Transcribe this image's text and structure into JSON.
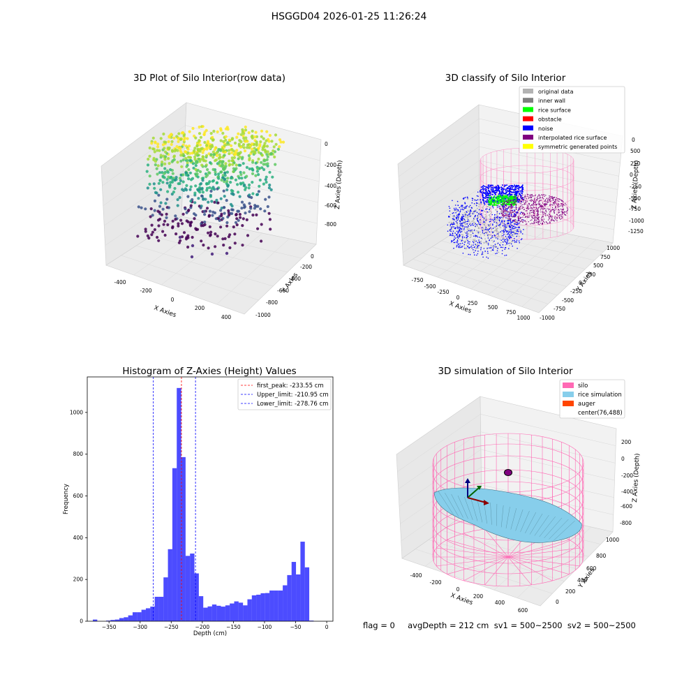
{
  "suptitle": "HSGGD04 2026-01-25 11:26:24",
  "footer": "flag = 0     avgDepth = 212 cm  sv1 = 500~2500  sv2 = 500~2500",
  "panels": {
    "raw": {
      "title": "3D Plot of Silo Interior(row data)",
      "xlabel": "X Axies",
      "ylabel": "Y Axies",
      "zlabel": "Z Axies (Depth)",
      "xticks": [
        "-400",
        "-200",
        "0",
        "200",
        "400"
      ],
      "yticks": [
        "0",
        "-200",
        "-400",
        "-600",
        "-800",
        "-1000"
      ],
      "zticks": [
        "0",
        "-200",
        "-400",
        "-600",
        "-800"
      ]
    },
    "classify": {
      "title": "3D classify of Silo Interior",
      "xlabel": "X Axies",
      "ylabel": "Y Axies",
      "zlabel": "Z Axies (Depth)",
      "xticks": [
        "-750",
        "-500",
        "-250",
        "0",
        "250",
        "500",
        "750",
        "1000"
      ],
      "yticks": [
        "1000",
        "750",
        "500",
        "250",
        "0",
        "-250",
        "-500",
        "-750",
        "-1000"
      ],
      "zticks": [
        "500",
        "250",
        "0",
        "-250",
        "-500",
        "-750",
        "-1000",
        "-1250"
      ],
      "legend": [
        {
          "label": "original data",
          "color": "#b3b3b3"
        },
        {
          "label": "inner wall",
          "color": "#808080"
        },
        {
          "label": "rice surface",
          "color": "#00ff00"
        },
        {
          "label": "obstacle",
          "color": "#ff0000"
        },
        {
          "label": "noise",
          "color": "#0000ff"
        },
        {
          "label": "interpolated rice surface",
          "color": "#800080"
        },
        {
          "label": "symmetric generated points",
          "color": "#ffff00"
        }
      ],
      "partial_tick": "0"
    },
    "simulation": {
      "title": "3D simulation of Silo Interior",
      "xlabel": "X Axies",
      "ylabel": "Y Axies",
      "zlabel": "Z Axies (Depth)",
      "xticks": [
        "-400",
        "-200",
        "0",
        "200",
        "400",
        "600"
      ],
      "yticks": [
        "1000",
        "800",
        "600",
        "400",
        "200",
        "0"
      ],
      "zticks": [
        "200",
        "0",
        "-200",
        "-400",
        "-600",
        "-800"
      ],
      "legend": [
        {
          "label": "silo",
          "color": "#ff69b4"
        },
        {
          "label": "rice simulation",
          "color": "#87ceeb"
        },
        {
          "label": "auger",
          "color": "#ff4500"
        },
        {
          "label": "center(76,488)",
          "color": "none"
        }
      ]
    }
  },
  "chart_data": [
    {
      "type": "scatter3d",
      "title": "3D Plot of Silo Interior(row data)",
      "xlabel": "X Axies",
      "ylabel": "Y Axies",
      "zlabel": "Z Axies (Depth)",
      "xlim": [
        -500,
        450
      ],
      "ylim": [
        -1000,
        50
      ],
      "zlim": [
        -950,
        50
      ],
      "colormap": "viridis"
    },
    {
      "type": "scatter3d",
      "title": "3D classify of Silo Interior",
      "xlabel": "X Axies",
      "ylabel": "Y Axies",
      "zlabel": "Z Axies (Depth)",
      "xlim": [
        -850,
        1050
      ],
      "ylim": [
        -1050,
        1050
      ],
      "zlim": [
        -1300,
        550
      ],
      "series": [
        {
          "name": "original data",
          "color": "#b3b3b3"
        },
        {
          "name": "inner wall",
          "color": "#808080"
        },
        {
          "name": "rice surface",
          "color": "#00ff00"
        },
        {
          "name": "obstacle",
          "color": "#ff0000"
        },
        {
          "name": "noise",
          "color": "#0000ff"
        },
        {
          "name": "interpolated rice surface",
          "color": "#800080"
        },
        {
          "name": "symmetric generated points",
          "color": "#ffff00"
        }
      ],
      "legend_position": "upper right"
    },
    {
      "type": "bar",
      "title": "Histogram of Z-Axies (Height) Values",
      "xlabel": "Depth (cm)",
      "ylabel": "Frequency",
      "bin_width": 7.1,
      "bin_start": -376,
      "values": [
        8,
        0,
        0,
        3,
        6,
        8,
        15,
        19,
        28,
        43,
        43,
        55,
        62,
        70,
        117,
        117,
        210,
        345,
        733,
        1117,
        786,
        313,
        324,
        229,
        120,
        65,
        71,
        80,
        74,
        70,
        76,
        85,
        95,
        89,
        76,
        105,
        124,
        127,
        134,
        135,
        147,
        147,
        147,
        172,
        221,
        284,
        224,
        381,
        258,
        3
      ],
      "xticks": [
        -350,
        -300,
        -250,
        -200,
        -150,
        -100,
        -50,
        0
      ],
      "yticks": [
        0,
        200,
        400,
        600,
        800,
        1000
      ],
      "xlim": [
        -385,
        10
      ],
      "ylim": [
        0,
        1170
      ],
      "bar_color": "#0000ff",
      "bar_alpha": 0.7,
      "vlines": [
        {
          "label": "first_peak: -233.55 cm",
          "x": -233.55,
          "color": "#ff0000"
        },
        {
          "label": "Upper_limit: -210.95 cm",
          "x": -210.95,
          "color": "#0000ff"
        },
        {
          "label": "Lower_limit: -278.76 cm",
          "x": -278.76,
          "color": "#0000ff"
        }
      ],
      "legend_position": "upper right"
    },
    {
      "type": "surface3d",
      "title": "3D simulation of Silo Interior",
      "xlabel": "X Axies",
      "ylabel": "Y Axies",
      "zlabel": "Z Axies (Depth)",
      "xlim": [
        -500,
        650
      ],
      "ylim": [
        -100,
        1050
      ],
      "zlim": [
        -900,
        300
      ],
      "series": [
        {
          "name": "silo",
          "color": "#ff69b4"
        },
        {
          "name": "rice simulation",
          "color": "#87ceeb"
        },
        {
          "name": "auger",
          "color": "#ff4500"
        },
        {
          "name": "center(76,488)",
          "color": "none"
        }
      ],
      "legend_position": "upper right"
    }
  ]
}
